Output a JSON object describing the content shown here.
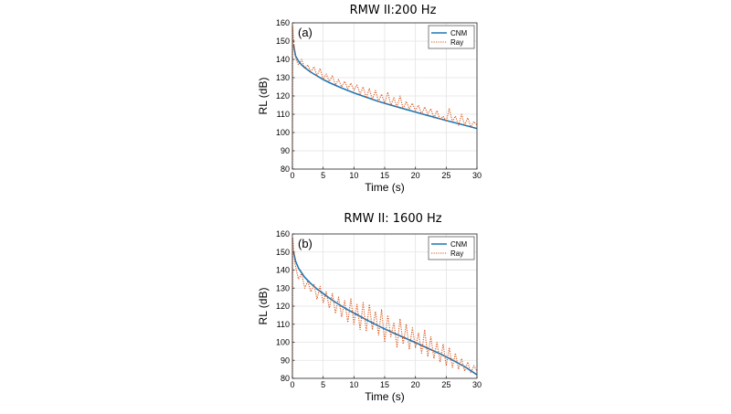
{
  "chart_data": [
    {
      "type": "line",
      "title": "RMW II:200 Hz",
      "panel_label": "(a)",
      "xlabel": "Time (s)",
      "ylabel": "RL (dB)",
      "xlim": [
        0,
        30
      ],
      "ylim": [
        80,
        160
      ],
      "xticks": [
        0,
        5,
        10,
        15,
        20,
        25,
        30
      ],
      "yticks": [
        80,
        90,
        100,
        110,
        120,
        130,
        140,
        150,
        160
      ],
      "grid": true,
      "legend_position": "top-right",
      "series": [
        {
          "name": "CNM",
          "color": "#1f77b4",
          "style": "solid",
          "x": [
            0.2,
            0.5,
            1,
            1.5,
            2,
            3,
            4,
            5,
            6,
            7,
            8,
            9,
            10,
            12,
            14,
            16,
            18,
            20,
            22,
            24,
            26,
            28,
            30
          ],
          "y": [
            148,
            142,
            139,
            137,
            135.5,
            133,
            131,
            129,
            127.3,
            125.8,
            124.4,
            123,
            121.7,
            119.3,
            117,
            115,
            113.1,
            111.2,
            109.3,
            107.5,
            105.7,
            104,
            102.2
          ]
        },
        {
          "name": "Ray",
          "color": "#d95319",
          "style": "dotted",
          "x": [
            0,
            0.05,
            0.2,
            0.4,
            0.7,
            1,
            1.5,
            2,
            2.5,
            3,
            3.5,
            4,
            4.5,
            5,
            5.5,
            6,
            6.5,
            7,
            7.5,
            8,
            8.5,
            9,
            9.5,
            10,
            10.5,
            11,
            11.5,
            12,
            12.5,
            13,
            13.5,
            14,
            14.5,
            15,
            15.5,
            16,
            16.5,
            17,
            17.5,
            18,
            18.5,
            19,
            19.5,
            20,
            20.5,
            21,
            21.5,
            22,
            22.5,
            23,
            23.5,
            24,
            24.5,
            25,
            25.5,
            26,
            26.5,
            27,
            27.5,
            28,
            28.5,
            29,
            29.5,
            30
          ],
          "y": [
            80,
            158,
            150,
            143,
            139,
            137,
            140,
            135,
            137,
            133,
            136,
            131,
            135,
            129,
            132,
            128,
            131,
            126,
            129,
            125,
            128,
            124,
            127,
            123,
            126,
            121,
            125,
            119,
            124,
            118,
            123,
            117,
            121,
            116,
            122,
            115,
            119,
            114,
            120,
            113,
            117,
            113,
            116,
            112,
            115,
            110,
            114,
            110,
            113,
            108,
            112,
            107,
            109,
            106,
            113,
            106,
            109,
            104,
            110,
            104,
            108,
            103,
            106,
            104
          ]
        }
      ]
    },
    {
      "type": "line",
      "title": "RMW II: 1600 Hz",
      "panel_label": "(b)",
      "xlabel": "Time (s)",
      "ylabel": "RL (dB)",
      "xlim": [
        0,
        30
      ],
      "ylim": [
        80,
        160
      ],
      "xticks": [
        0,
        5,
        10,
        15,
        20,
        25,
        30
      ],
      "yticks": [
        80,
        90,
        100,
        110,
        120,
        130,
        140,
        150,
        160
      ],
      "grid": true,
      "legend_position": "top-right",
      "series": [
        {
          "name": "CNM",
          "color": "#1f77b4",
          "style": "solid",
          "x": [
            0.2,
            0.5,
            1,
            1.5,
            2,
            3,
            4,
            5,
            6,
            7,
            8,
            9,
            10,
            12,
            14,
            16,
            18,
            20,
            22,
            24,
            26,
            28,
            30
          ],
          "y": [
            150,
            145,
            141,
            138.5,
            136,
            132.5,
            129.5,
            127,
            124.5,
            122.2,
            120,
            118,
            116.2,
            112.5,
            109,
            105.8,
            102.8,
            99.8,
            96.7,
            93.6,
            90.2,
            86.5,
            82
          ]
        },
        {
          "name": "Ray",
          "color": "#d95319",
          "style": "dotted",
          "x": [
            0,
            0.05,
            0.2,
            0.4,
            0.7,
            1,
            1.5,
            2,
            2.5,
            3,
            3.5,
            4,
            4.5,
            5,
            5.5,
            6,
            6.5,
            7,
            7.5,
            8,
            8.5,
            9,
            9.5,
            10,
            10.5,
            11,
            11.5,
            12,
            12.5,
            13,
            13.5,
            14,
            14.5,
            15,
            15.5,
            16,
            16.5,
            17,
            17.5,
            18,
            18.5,
            19,
            19.5,
            20,
            20.5,
            21,
            21.5,
            22,
            22.5,
            23,
            23.5,
            24,
            24.5,
            25,
            25.5,
            26,
            26.5,
            27,
            27.5,
            28,
            28.5,
            29,
            29.5,
            30
          ],
          "y": [
            80,
            158,
            152,
            144,
            139,
            135,
            138,
            130,
            134,
            128,
            132,
            124,
            131,
            122,
            128,
            119,
            127,
            116,
            125,
            114,
            123,
            111,
            124,
            110,
            121,
            107,
            122,
            106,
            121,
            107,
            117,
            104,
            118,
            100,
            115,
            103,
            111,
            97,
            113,
            99,
            110,
            96,
            108,
            97,
            105,
            94,
            107,
            92,
            103,
            91,
            100,
            89,
            99,
            87,
            97,
            86,
            94,
            85,
            91,
            84,
            89,
            83,
            87,
            84
          ]
        }
      ]
    }
  ]
}
